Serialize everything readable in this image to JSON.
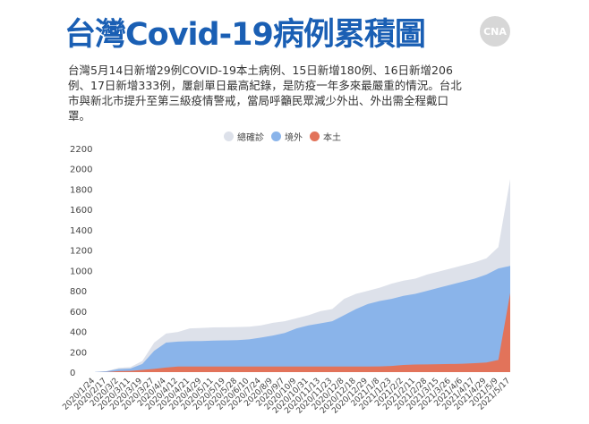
{
  "header": {
    "title": "台灣Covid-19病例累積圖",
    "logo": "CNA"
  },
  "description": "台灣5月14日新增29例COVID-19本土病例、15日新增180例、16日新增206例、17日新增333例，屢創單日最高紀錄，是防疫一年多來最嚴重的情況。台北市與新北市提升至第三級疫情警戒，當局呼籲民眾減少外出、外出需全程戴口罩。",
  "chart_data": {
    "type": "area",
    "title": "台灣Covid-19病例累積圖",
    "legend_position": "top-center",
    "ylim": [
      0,
      2200
    ],
    "yticks": [
      0,
      200,
      400,
      600,
      800,
      1000,
      1200,
      1400,
      1600,
      1800,
      2000,
      2200
    ],
    "categories": [
      "2020/1/24",
      "2020/2/17",
      "2020/3/2",
      "2020/3/11",
      "2020/3/19",
      "2020/3/27",
      "2020/4/4",
      "2020/4/12",
      "2020/4/21",
      "2020/4/29",
      "2020/5/11",
      "2020/5/19",
      "2020/5/28",
      "2020/6/10",
      "2020/7/24",
      "2020/8/9",
      "2020/9/7",
      "2020/10/9",
      "2020/10/31",
      "2020/11/13",
      "2020/11/23",
      "2020/12/8",
      "2020/12/18",
      "2020/12/29",
      "2021/1/8",
      "2021/1/23",
      "2021/2/2",
      "2021/2/11",
      "2021/2/28",
      "2021/3/15",
      "2021/3/26",
      "2021/4/6",
      "2021/4/17",
      "2021/4/29",
      "2021/5/9",
      "2021/5/17"
    ],
    "series": [
      {
        "name": "總確診",
        "color": "#dde1ea",
        "values": [
          1,
          10,
          42,
          50,
          110,
          290,
          380,
          395,
          430,
          435,
          440,
          441,
          443,
          447,
          460,
          485,
          500,
          530,
          560,
          600,
          620,
          720,
          770,
          800,
          830,
          870,
          900,
          920,
          960,
          990,
          1020,
          1050,
          1080,
          1120,
          1230,
          1900
        ]
      },
      {
        "name": "境外",
        "color": "#8ab4ea",
        "values": [
          1,
          9,
          30,
          35,
          80,
          210,
          290,
          300,
          305,
          306,
          310,
          312,
          315,
          322,
          340,
          360,
          385,
          430,
          460,
          480,
          500,
          560,
          620,
          670,
          700,
          720,
          750,
          770,
          800,
          830,
          860,
          890,
          920,
          960,
          1020,
          1045
        ]
      },
      {
        "name": "本土",
        "color": "#e2735a",
        "values": [
          0,
          1,
          10,
          12,
          22,
          32,
          45,
          55,
          55,
          55,
          55,
          55,
          55,
          55,
          55,
          55,
          55,
          55,
          55,
          55,
          55,
          55,
          55,
          55,
          56,
          60,
          70,
          75,
          76,
          78,
          80,
          82,
          88,
          95,
          120,
          780
        ]
      }
    ]
  }
}
